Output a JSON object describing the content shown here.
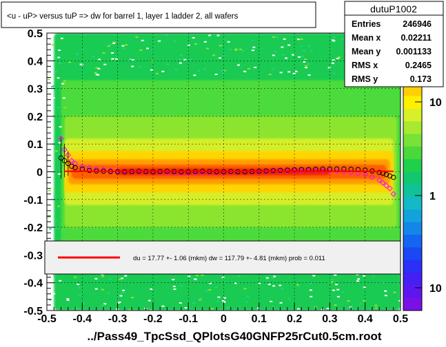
{
  "title": "<u - uP>       versus  tuP =>  dw for barrel 1, layer 1 ladder 2, all wafers",
  "xlabel": "../Pass49_TpcSsd_QPlotsG40GNFP25rCut0.5cm.root",
  "stats": {
    "name": "dutuP1002",
    "rows": [
      {
        "label": "Entries",
        "value": "246946"
      },
      {
        "label": "Mean x",
        "value": "0.02211"
      },
      {
        "label": "Mean y",
        "value": "0.001133"
      },
      {
        "label": "RMS x",
        "value": "0.2465"
      },
      {
        "label": "RMS y",
        "value": "0.173"
      }
    ]
  },
  "fit_text": "du =   17.77 +-  1.06 (mkm) dw =  117.79 +-  4.81 (mkm) prob = 0.011",
  "colors": {
    "fit_line": "#ff0000",
    "mean_marker": "#000000",
    "rms_marker": "#ff00ff"
  },
  "chart_data": {
    "type": "heatmap",
    "title": "<u - uP>       versus  tuP =>  dw for barrel 1, layer 1 ladder 2, all wafers",
    "xlabel": "../Pass49_TpcSsd_QPlotsG40GNFP25rCut0.5cm.root",
    "ylabel": "",
    "xlim": [
      -0.5,
      0.5
    ],
    "ylim": [
      -0.5,
      0.5
    ],
    "x_ticks": [
      "-0.5",
      "-0.4",
      "-0.3",
      "-0.2",
      "-0.1",
      "0",
      "0.1",
      "0.2",
      "0.3",
      "0.4",
      "0.5"
    ],
    "y_ticks": [
      "0.5",
      "0.4",
      "0.3",
      "0.2",
      "0.1",
      "0",
      "-0.1",
      "-0.2",
      "-0.3",
      "-0.4",
      "-0.5"
    ],
    "color_scale": "log",
    "color_ticks": [
      "10",
      "1",
      "10"
    ],
    "grid": true,
    "profile_mean": {
      "x": [
        -0.46,
        -0.45,
        -0.44,
        -0.43,
        -0.42,
        -0.4,
        -0.38,
        -0.36,
        -0.34,
        -0.32,
        -0.3,
        -0.28,
        -0.26,
        -0.24,
        -0.22,
        -0.2,
        -0.18,
        -0.16,
        -0.14,
        -0.12,
        -0.1,
        -0.08,
        -0.06,
        -0.04,
        -0.02,
        0.0,
        0.02,
        0.04,
        0.06,
        0.08,
        0.1,
        0.12,
        0.14,
        0.16,
        0.18,
        0.2,
        0.22,
        0.24,
        0.26,
        0.28,
        0.3,
        0.32,
        0.34,
        0.36,
        0.38,
        0.4,
        0.42,
        0.44,
        0.45,
        0.46,
        0.47,
        0.48
      ],
      "y": [
        0.05,
        0.04,
        0.03,
        0.02,
        0.015,
        0.01,
        0.005,
        0.003,
        0.002,
        0.001,
        0.0,
        0.0,
        0.001,
        0.002,
        0.001,
        0.0,
        0.001,
        0.002,
        0.001,
        0.0,
        0.0,
        0.001,
        0.002,
        0.001,
        0.0,
        0.0,
        0.001,
        0.0,
        0.0,
        0.001,
        0.002,
        0.003,
        0.004,
        0.005,
        0.006,
        0.007,
        0.008,
        0.008,
        0.009,
        0.01,
        0.01,
        0.01,
        0.01,
        0.009,
        0.008,
        0.006,
        0.003,
        -0.002,
        -0.005,
        -0.01,
        -0.015,
        -0.02
      ]
    },
    "profile_rms": {
      "x": [
        -0.46,
        -0.45,
        -0.44,
        -0.43,
        -0.42,
        -0.4,
        -0.38,
        -0.36,
        -0.34,
        -0.32,
        -0.3,
        -0.28,
        -0.26,
        -0.24,
        -0.22,
        -0.2,
        -0.18,
        -0.16,
        -0.14,
        -0.12,
        -0.1,
        -0.08,
        -0.06,
        -0.04,
        -0.02,
        0.0,
        0.02,
        0.04,
        0.06,
        0.08,
        0.1,
        0.12,
        0.14,
        0.16,
        0.18,
        0.2,
        0.22,
        0.24,
        0.26,
        0.28,
        0.3,
        0.32,
        0.34,
        0.36,
        0.38,
        0.4,
        0.42,
        0.44,
        0.45,
        0.46,
        0.47,
        0.48
      ],
      "y": [
        0.12,
        0.08,
        0.06,
        0.04,
        0.03,
        0.02,
        0.015,
        0.01,
        0.008,
        0.005,
        0.003,
        0.002,
        0.001,
        0.0,
        -0.001,
        -0.002,
        -0.003,
        -0.003,
        -0.003,
        -0.004,
        -0.004,
        -0.004,
        -0.003,
        -0.003,
        -0.003,
        -0.003,
        -0.002,
        -0.002,
        -0.002,
        -0.001,
        -0.001,
        0.0,
        0.001,
        0.002,
        0.003,
        0.004,
        0.004,
        0.005,
        0.005,
        0.004,
        0.003,
        0.002,
        0.0,
        -0.003,
        -0.006,
        -0.01,
        -0.02,
        -0.03,
        -0.04,
        -0.05,
        -0.06,
        -0.08
      ]
    },
    "fit_line": {
      "x": [
        -0.45,
        0.48
      ],
      "y": [
        0.002,
        0.002
      ]
    }
  }
}
